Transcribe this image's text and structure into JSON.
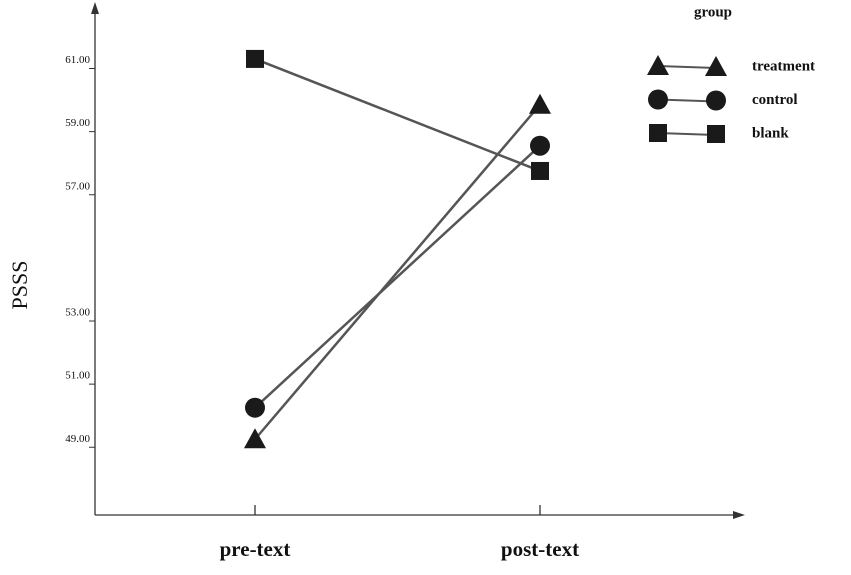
{
  "chart_data": {
    "type": "line",
    "y_label": "PSSS",
    "categories": [
      "pre-text",
      "post-text"
    ],
    "legend_title": "group",
    "legend_position": "upper right",
    "series": [
      {
        "name": "treatment",
        "color": "#1a1a1a",
        "marker": "triangle",
        "values": [
          49.0,
          59.6
        ]
      },
      {
        "name": "control",
        "color": "#1a1a1a",
        "marker": "circle",
        "values": [
          50.0,
          58.3
        ]
      },
      {
        "name": "blank",
        "color": "#1a1a1a",
        "marker": "square",
        "values": [
          61.05,
          57.5
        ]
      }
    ],
    "ylim": [
      46.6,
      62.6
    ],
    "yticks": [
      {
        "value": 49,
        "label": "49.00"
      },
      {
        "value": 51,
        "label": "51.00"
      },
      {
        "value": 53,
        "label": "53.00"
      },
      {
        "value": 57,
        "label": "57.00"
      },
      {
        "value": 59,
        "label": "59.00"
      },
      {
        "value": 61,
        "label": "61.00"
      }
    ]
  }
}
